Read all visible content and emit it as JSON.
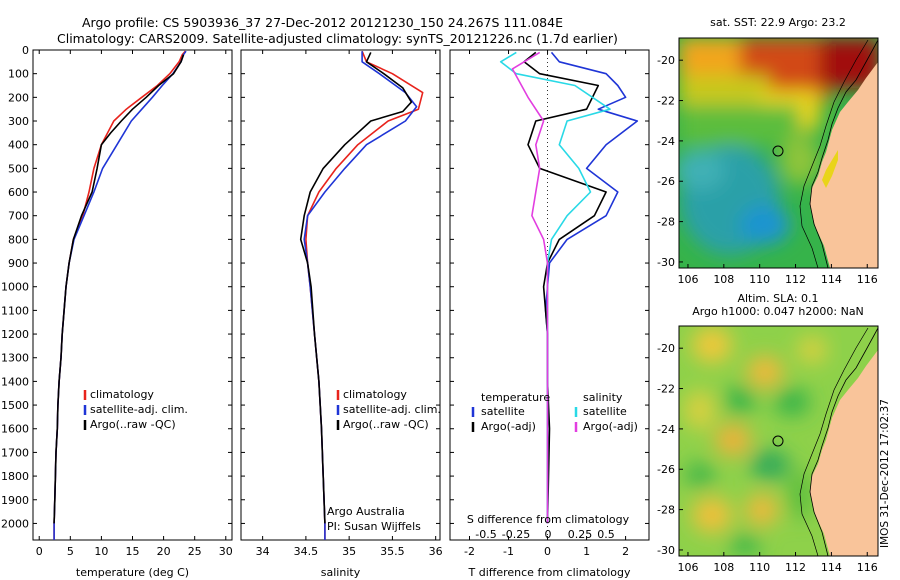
{
  "header": {
    "line1": "Argo profile: CS 5903936_37 27-Dec-2012 20121230_150 24.267S 111.084E",
    "line2": "Climatology: CARS2009. Satellite-adjusted climatology: synTS_20121226.nc (1.7d earlier)"
  },
  "colors": {
    "climatology": "#e8231c",
    "satellite": "#1f35d6",
    "argo": "#000000",
    "sal_satellite": "#29d9e6",
    "sal_argo": "#e23ee0",
    "land": "#f9c49a"
  },
  "chart_data": [
    {
      "type": "line",
      "id": "temperature",
      "xlabel": "temperature (deg C)",
      "ylim": [
        2070,
        0
      ],
      "xlim": [
        -1,
        31
      ],
      "xticks": [
        0,
        5,
        10,
        15,
        20,
        25,
        30
      ],
      "yticks": [
        0,
        100,
        200,
        300,
        400,
        500,
        600,
        700,
        800,
        900,
        1000,
        1100,
        1200,
        1300,
        1400,
        1500,
        1600,
        1700,
        1800,
        1900,
        2000
      ],
      "legend": [
        "climatology",
        "satellite-adj. clim.",
        "Argo(..raw -QC)"
      ],
      "series": [
        {
          "name": "climatology",
          "color": "#e8231c",
          "points": [
            [
              23.5,
              5
            ],
            [
              23,
              20
            ],
            [
              22.5,
              50
            ],
            [
              21,
              100
            ],
            [
              19,
              150
            ],
            [
              16.5,
              200
            ],
            [
              14,
              250
            ],
            [
              12,
              300
            ],
            [
              10,
              400
            ],
            [
              8.8,
              500
            ],
            [
              8,
              600
            ],
            [
              7,
              700
            ],
            [
              5.5,
              800
            ],
            [
              4.8,
              900
            ],
            [
              4.3,
              1000
            ],
            [
              4,
              1100
            ],
            [
              3.7,
              1200
            ],
            [
              3.5,
              1300
            ],
            [
              3.2,
              1400
            ],
            [
              3,
              1500
            ],
            [
              2.9,
              1600
            ],
            [
              2.7,
              1700
            ],
            [
              2.6,
              1800
            ],
            [
              2.5,
              1900
            ],
            [
              2.4,
              2000
            ],
            [
              2.4,
              2070
            ]
          ]
        },
        {
          "name": "satellite-adj. clim.",
          "color": "#1f35d6",
          "points": [
            [
              23.6,
              5
            ],
            [
              23.2,
              20
            ],
            [
              22.8,
              50
            ],
            [
              21.5,
              100
            ],
            [
              19.8,
              150
            ],
            [
              18.2,
              200
            ],
            [
              16.5,
              250
            ],
            [
              14.8,
              300
            ],
            [
              12.5,
              400
            ],
            [
              10.2,
              500
            ],
            [
              8.8,
              600
            ],
            [
              7.2,
              700
            ],
            [
              5.6,
              800
            ],
            [
              4.8,
              900
            ],
            [
              4.3,
              1000
            ],
            [
              4,
              1100
            ],
            [
              3.7,
              1200
            ],
            [
              3.5,
              1300
            ],
            [
              3.2,
              1400
            ],
            [
              3,
              1500
            ],
            [
              2.9,
              1600
            ],
            [
              2.7,
              1700
            ],
            [
              2.6,
              1800
            ],
            [
              2.5,
              1900
            ],
            [
              2.4,
              2000
            ],
            [
              2.4,
              2070
            ]
          ]
        },
        {
          "name": "Argo(..raw -QC)",
          "color": "#000000",
          "points": [
            [
              23.2,
              20
            ],
            [
              22.8,
              50
            ],
            [
              21.6,
              100
            ],
            [
              19.2,
              150
            ],
            [
              17.2,
              200
            ],
            [
              15,
              250
            ],
            [
              13.2,
              300
            ],
            [
              11.5,
              350
            ],
            [
              10,
              400
            ],
            [
              9.3,
              500
            ],
            [
              8.5,
              600
            ],
            [
              6.8,
              700
            ],
            [
              5.5,
              800
            ],
            [
              4.8,
              900
            ],
            [
              4.3,
              1000
            ],
            [
              4,
              1100
            ],
            [
              3.7,
              1200
            ],
            [
              3.5,
              1300
            ],
            [
              3.2,
              1400
            ],
            [
              3,
              1500
            ],
            [
              2.9,
              1600
            ],
            [
              2.7,
              1700
            ],
            [
              2.6,
              1800
            ],
            [
              2.5,
              1900
            ],
            [
              2.4,
              2000
            ]
          ]
        }
      ]
    },
    {
      "type": "line",
      "id": "salinity",
      "xlabel": "salinity",
      "ylim": [
        2070,
        0
      ],
      "xlim": [
        33.75,
        36.05
      ],
      "xticks": [
        34,
        34.5,
        35,
        35.5,
        36
      ],
      "xtick_labels": [
        "34",
        "34.5",
        "35",
        "35.5",
        "36"
      ],
      "legend": [
        "climatology",
        "satellite-adj. clim.",
        "Argo(..raw -QC)"
      ],
      "annotation": [
        "Argo Australia",
        "PI: Susan Wijffels"
      ],
      "series": [
        {
          "name": "climatology",
          "color": "#e8231c",
          "points": [
            [
              35.15,
              5
            ],
            [
              35.2,
              50
            ],
            [
              35.5,
              100
            ],
            [
              35.85,
              180
            ],
            [
              35.8,
              250
            ],
            [
              35.45,
              300
            ],
            [
              35.1,
              400
            ],
            [
              34.85,
              500
            ],
            [
              34.65,
              600
            ],
            [
              34.52,
              700
            ],
            [
              34.5,
              800
            ],
            [
              34.52,
              900
            ],
            [
              34.55,
              1000
            ],
            [
              34.6,
              1200
            ],
            [
              34.65,
              1400
            ],
            [
              34.68,
              1600
            ],
            [
              34.7,
              1800
            ],
            [
              34.72,
              2000
            ],
            [
              34.72,
              2070
            ]
          ]
        },
        {
          "name": "satellite-adj. clim.",
          "color": "#1f35d6",
          "points": [
            [
              35.15,
              5
            ],
            [
              35.15,
              50
            ],
            [
              35.35,
              100
            ],
            [
              35.65,
              180
            ],
            [
              35.78,
              240
            ],
            [
              35.65,
              300
            ],
            [
              35.2,
              400
            ],
            [
              34.95,
              500
            ],
            [
              34.72,
              600
            ],
            [
              34.52,
              700
            ],
            [
              34.48,
              800
            ],
            [
              34.52,
              900
            ],
            [
              34.55,
              1000
            ],
            [
              34.6,
              1200
            ],
            [
              34.65,
              1400
            ],
            [
              34.68,
              1600
            ],
            [
              34.7,
              1800
            ],
            [
              34.72,
              2000
            ],
            [
              34.72,
              2070
            ]
          ]
        },
        {
          "name": "Argo(..raw -QC)",
          "color": "#000000",
          "points": [
            [
              35.25,
              10
            ],
            [
              35.2,
              50
            ],
            [
              35.4,
              100
            ],
            [
              35.62,
              160
            ],
            [
              35.72,
              220
            ],
            [
              35.62,
              260
            ],
            [
              35.25,
              300
            ],
            [
              34.95,
              400
            ],
            [
              34.7,
              500
            ],
            [
              34.55,
              600
            ],
            [
              34.48,
              700
            ],
            [
              34.44,
              800
            ],
            [
              34.52,
              900
            ],
            [
              34.56,
              1000
            ],
            [
              34.6,
              1200
            ],
            [
              34.65,
              1400
            ],
            [
              34.68,
              1600
            ],
            [
              34.7,
              1800
            ],
            [
              34.72,
              2000
            ]
          ]
        }
      ]
    },
    {
      "type": "line",
      "id": "difference",
      "xlabel": "T difference from climatology",
      "xlabel_top": "S difference from climatology",
      "ylim": [
        2070,
        0
      ],
      "xlim": [
        -2.5,
        2.6
      ],
      "xticks": [
        -2,
        -1,
        0,
        1,
        2
      ],
      "xticks_top": [
        "-0.5",
        "-0.25",
        "0",
        "0.25",
        "0.5"
      ],
      "legend_temperature": {
        "heading": "temperature",
        "items": [
          "satellite",
          "Argo(-adj)"
        ]
      },
      "legend_salinity": {
        "heading": "salinity",
        "items": [
          "satellite",
          "Argo(-adj)"
        ]
      },
      "series": [
        {
          "name": "temperature satellite",
          "color": "#1f35d6",
          "points": [
            [
              0.1,
              10
            ],
            [
              0.3,
              50
            ],
            [
              1.5,
              100
            ],
            [
              1.8,
              150
            ],
            [
              2,
              200
            ],
            [
              1.3,
              250
            ],
            [
              2.3,
              300
            ],
            [
              1.5,
              400
            ],
            [
              1,
              500
            ],
            [
              1.8,
              600
            ],
            [
              1.5,
              700
            ],
            [
              0.5,
              800
            ],
            [
              0.05,
              900
            ],
            [
              0,
              1000
            ],
            [
              -0.05,
              1100
            ],
            [
              0,
              1200
            ],
            [
              0,
              1400
            ],
            [
              0,
              1600
            ],
            [
              0,
              2000
            ]
          ]
        },
        {
          "name": "temperature Argo(-adj)",
          "color": "#000000",
          "points": [
            [
              -0.3,
              10
            ],
            [
              -0.6,
              50
            ],
            [
              -0.2,
              100
            ],
            [
              1.3,
              150
            ],
            [
              1,
              250
            ],
            [
              -0.3,
              300
            ],
            [
              -0.5,
              400
            ],
            [
              -0.2,
              500
            ],
            [
              1.5,
              600
            ],
            [
              1.2,
              700
            ],
            [
              0.3,
              800
            ],
            [
              0,
              900
            ],
            [
              -0.1,
              1000
            ],
            [
              0,
              1200
            ],
            [
              0,
              1400
            ],
            [
              0.05,
              1600
            ],
            [
              0,
              2000
            ]
          ]
        },
        {
          "name": "salinity satellite",
          "color": "#29d9e6",
          "points": [
            [
              -0.8,
              10
            ],
            [
              -1.2,
              50
            ],
            [
              -0.8,
              100
            ],
            [
              0.7,
              150
            ],
            [
              1.6,
              250
            ],
            [
              0.5,
              300
            ],
            [
              0.3,
              400
            ],
            [
              0.8,
              500
            ],
            [
              1.1,
              600
            ],
            [
              0.5,
              700
            ],
            [
              0.1,
              800
            ],
            [
              0,
              900
            ],
            [
              0,
              1000
            ],
            [
              0,
              1400
            ],
            [
              0,
              2000
            ]
          ]
        },
        {
          "name": "salinity Argo(-adj)",
          "color": "#e23ee0",
          "points": [
            [
              -0.2,
              10
            ],
            [
              -0.9,
              80
            ],
            [
              -0.5,
              200
            ],
            [
              -0.1,
              300
            ],
            [
              -0.3,
              400
            ],
            [
              -0.2,
              500
            ],
            [
              -0.3,
              600
            ],
            [
              -0.4,
              700
            ],
            [
              -0.1,
              800
            ],
            [
              0,
              900
            ],
            [
              0,
              1000
            ],
            [
              0,
              1400
            ],
            [
              0,
              2000
            ]
          ]
        }
      ]
    },
    {
      "type": "heatmap",
      "id": "sst-map",
      "title": "sat. SST: 22.9 Argo: 23.2",
      "xticks": [
        106,
        108,
        110,
        112,
        114,
        116
      ],
      "yticks": [
        -20,
        -22,
        -24,
        -26,
        -28,
        -30
      ],
      "marker": {
        "lon": 111.084,
        "lat": -24.267
      }
    },
    {
      "type": "heatmap",
      "id": "sla-map",
      "title_line1": "Altim. SLA: 0.1",
      "title_line2": "Argo h1000: 0.047 h2000: NaN",
      "xticks": [
        106,
        108,
        110,
        112,
        114,
        116
      ],
      "yticks": [
        -20,
        -22,
        -24,
        -26,
        -28,
        -30
      ],
      "marker": {
        "lon": 111.084,
        "lat": -24.267
      }
    }
  ],
  "side_label": "IMOS 31-Dec-2012 17:02:37"
}
